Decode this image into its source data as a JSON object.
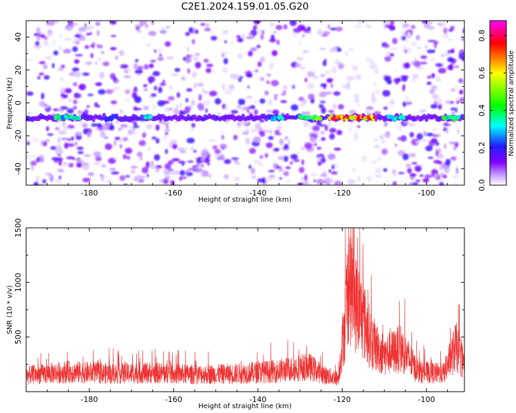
{
  "title": "C2E1.2024.159.01.05.G20",
  "chart_data": [
    {
      "type": "heatmap",
      "title": "C2E1.2024.159.01.05.G20",
      "xlabel": "Height of straight line (km)",
      "ylabel": "Frequency (Hz)",
      "xlim": [
        -195,
        -91
      ],
      "ylim": [
        -50,
        50
      ],
      "xticks": [
        -180,
        -160,
        -140,
        -120,
        -100
      ],
      "yticks": [
        -40,
        -20,
        0,
        20,
        40
      ],
      "colorbar": {
        "label": "Normalized spectral amplitude",
        "range": [
          0,
          0.88
        ],
        "ticks": [
          0.0,
          0.2,
          0.4,
          0.6,
          0.8
        ]
      },
      "colors": [
        "#ffffff",
        "#c8a0ff",
        "#8000ff",
        "#2020ff",
        "#00ffff",
        "#00ff00",
        "#ffff00",
        "#ff0000",
        "#ff00ff"
      ],
      "band": {
        "frequency_hz": -9,
        "half_width_hz": 2
      },
      "band_segments": [
        {
          "x": [
            -188,
            -182
          ],
          "amplitude": 0.45
        },
        {
          "x": [
            -176,
            -174
          ],
          "amplitude": 0.25
        },
        {
          "x": [
            -167,
            -165
          ],
          "amplitude": 0.4
        },
        {
          "x": [
            -137,
            -134
          ],
          "amplitude": 0.35
        },
        {
          "x": [
            -130,
            -125
          ],
          "amplitude": 0.55
        },
        {
          "x": [
            -123,
            -112
          ],
          "amplitude": 0.85
        },
        {
          "x": [
            -109,
            -105
          ],
          "amplitude": 0.4
        },
        {
          "x": [
            -96,
            -92
          ],
          "amplitude": 0.5
        }
      ],
      "low_noise_region": {
        "x": [
          -120,
          -110
        ],
        "y": [
          -50,
          50
        ]
      },
      "grid": false
    },
    {
      "type": "line",
      "xlabel": "Height of straight line (km)",
      "ylabel": "SNR (10 * v/v)",
      "xlim": [
        -195,
        -91
      ],
      "ylim": [
        0,
        1500
      ],
      "xticks": [
        -180,
        -160,
        -140,
        -120,
        -100
      ],
      "yticks": [
        500,
        1000,
        1500
      ],
      "color": "#ee3333",
      "envelope": [
        {
          "x": -195,
          "y": 180
        },
        {
          "x": -185,
          "y": 220
        },
        {
          "x": -175,
          "y": 200
        },
        {
          "x": -165,
          "y": 210
        },
        {
          "x": -155,
          "y": 190
        },
        {
          "x": -145,
          "y": 200
        },
        {
          "x": -135,
          "y": 230
        },
        {
          "x": -128,
          "y": 280
        },
        {
          "x": -124,
          "y": 180
        },
        {
          "x": -121,
          "y": 150
        },
        {
          "x": -119.5,
          "y": 700
        },
        {
          "x": -118.5,
          "y": 1250
        },
        {
          "x": -117,
          "y": 1000
        },
        {
          "x": -115,
          "y": 800
        },
        {
          "x": -113,
          "y": 550
        },
        {
          "x": -110,
          "y": 400
        },
        {
          "x": -106,
          "y": 480
        },
        {
          "x": -102,
          "y": 220
        },
        {
          "x": -96,
          "y": 200
        },
        {
          "x": -93,
          "y": 500
        },
        {
          "x": -91,
          "y": 300
        }
      ],
      "grid": false
    }
  ]
}
